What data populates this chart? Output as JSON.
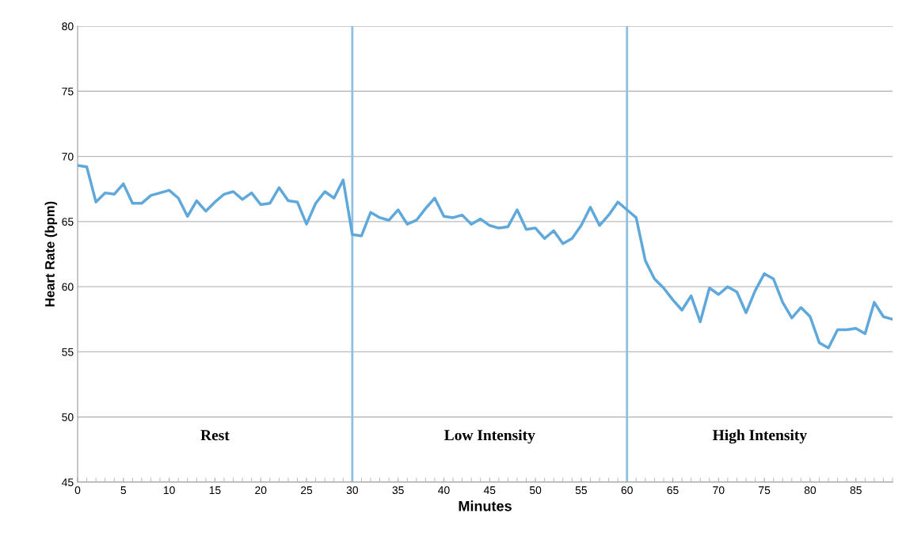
{
  "chart_data": {
    "type": "line",
    "xlabel": "Minutes",
    "ylabel": "Heart Rate (bpm)",
    "x": [
      0,
      1,
      2,
      3,
      4,
      5,
      6,
      7,
      8,
      9,
      10,
      11,
      12,
      13,
      14,
      15,
      16,
      17,
      18,
      19,
      20,
      21,
      22,
      23,
      24,
      25,
      26,
      27,
      28,
      29,
      30,
      31,
      32,
      33,
      34,
      35,
      36,
      37,
      38,
      39,
      40,
      41,
      42,
      43,
      44,
      45,
      46,
      47,
      48,
      49,
      50,
      51,
      52,
      53,
      54,
      55,
      56,
      57,
      58,
      59,
      60,
      61,
      62,
      63,
      64,
      65,
      66,
      67,
      68,
      69,
      70,
      71,
      72,
      73,
      74,
      75,
      76,
      77,
      78,
      79,
      80,
      81,
      82,
      83,
      84,
      85,
      86,
      87,
      88,
      89
    ],
    "series": [
      {
        "color": "#5fa8dc",
        "values": [
          69.3,
          69.2,
          66.5,
          67.2,
          67.1,
          67.9,
          66.4,
          66.4,
          67.0,
          67.2,
          67.4,
          66.8,
          65.4,
          66.6,
          65.8,
          66.5,
          67.1,
          67.3,
          66.7,
          67.2,
          66.3,
          66.4,
          67.6,
          66.6,
          66.5,
          64.8,
          66.4,
          67.3,
          66.8,
          68.2,
          64.0,
          63.9,
          65.7,
          65.3,
          65.1,
          65.9,
          64.8,
          65.1,
          66.0,
          66.8,
          65.4,
          65.3,
          65.5,
          64.8,
          65.2,
          64.7,
          64.5,
          64.6,
          65.9,
          64.4,
          64.5,
          63.7,
          64.3,
          63.3,
          63.7,
          64.7,
          66.1,
          64.7,
          65.5,
          66.5,
          65.9,
          65.3,
          62.0,
          60.6,
          59.9,
          59.0,
          58.2,
          59.3,
          57.3,
          59.9,
          59.4,
          60.0,
          59.6,
          58.0,
          59.7,
          61.0,
          60.6,
          58.8,
          57.6,
          58.4,
          57.7,
          55.7,
          55.3,
          56.7,
          56.7,
          56.8,
          56.4,
          58.8,
          57.7,
          57.5
        ]
      }
    ],
    "xlim": [
      0,
      89
    ],
    "xticks": [
      0,
      5,
      10,
      15,
      20,
      25,
      30,
      35,
      40,
      45,
      50,
      55,
      60,
      65,
      70,
      75,
      80,
      85
    ],
    "ylim": [
      45,
      80
    ],
    "yticks": [
      45,
      50,
      55,
      60,
      65,
      70,
      75,
      80
    ],
    "ref_lines": [
      {
        "axis": "x",
        "value": 30,
        "color": "#8fc0e4"
      },
      {
        "axis": "x",
        "value": 60,
        "color": "#8fc0e4"
      }
    ],
    "annotations": [
      "Rest",
      "Low Intensity",
      "High Intensity"
    ],
    "grid": "y",
    "legend": false,
    "marker": "none",
    "line_style": "solid"
  }
}
